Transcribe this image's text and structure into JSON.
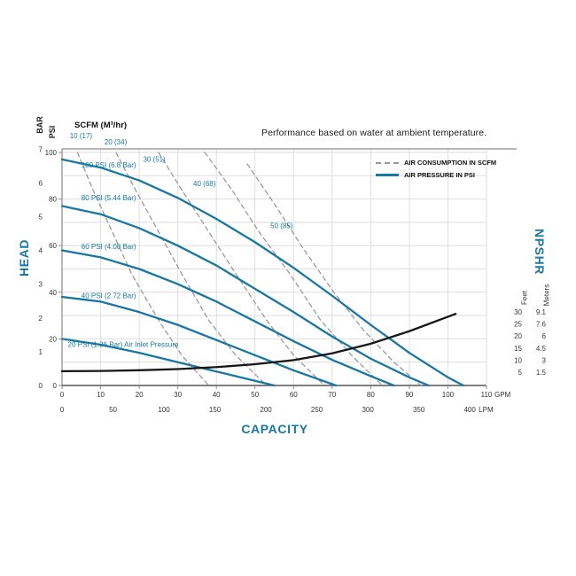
{
  "legend": [
    {
      "label": "AIR CONSUMPTION IN SCFM",
      "style": "dashed",
      "color": "#999999"
    },
    {
      "label": "AIR PRESSURE IN PSI",
      "style": "solid",
      "color": "#1878a2"
    }
  ],
  "chart_data": {
    "type": "line",
    "title": "Performance based on water at ambient temperature.",
    "air_consumption_header": "SCFM (M³/hr)",
    "x_axis": {
      "label": "CAPACITY",
      "gpm": {
        "unit": "GPM",
        "ticks": [
          0,
          10,
          20,
          30,
          40,
          50,
          60,
          70,
          80,
          90,
          100,
          110
        ]
      },
      "lpm": {
        "unit": "LPM",
        "ticks": [
          0,
          50,
          100,
          150,
          200,
          250,
          300,
          350,
          400
        ]
      },
      "range_gpm": [
        0,
        110
      ]
    },
    "y_axis": {
      "label": "HEAD",
      "psi": {
        "unit": "PSI",
        "ticks": [
          0,
          20,
          40,
          60,
          80,
          100
        ]
      },
      "bar": {
        "unit": "BAR",
        "ticks": [
          0,
          1,
          2,
          3,
          4,
          5,
          6,
          7
        ]
      },
      "range_psi": [
        0,
        100
      ]
    },
    "npshr_axis": {
      "label": "NPSHR",
      "feet": {
        "unit": "Feet",
        "ticks": [
          30,
          25,
          20,
          15,
          10,
          5
        ]
      },
      "meters": {
        "unit": "Meters",
        "ticks": [
          "9.1",
          "7.6",
          "6",
          "4.5",
          "3",
          "1.5"
        ]
      }
    },
    "series": {
      "pressure_curves": [
        {
          "name": "100 PSI (6.8 Bar)",
          "label_pos": [
            5,
            93.5
          ],
          "points": [
            [
              0,
              97
            ],
            [
              10,
              93.5
            ],
            [
              20,
              88
            ],
            [
              30,
              80.5
            ],
            [
              40,
              71.5
            ],
            [
              50,
              61.5
            ],
            [
              60,
              50.5
            ],
            [
              70,
              38.5
            ],
            [
              80,
              26
            ],
            [
              90,
              14
            ],
            [
              100,
              3.5
            ],
            [
              104,
              0
            ]
          ]
        },
        {
          "name": "80 PSI (5.44 Bar)",
          "label_pos": [
            5,
            79.5
          ],
          "points": [
            [
              0,
              77
            ],
            [
              10,
              73.5
            ],
            [
              20,
              67.5
            ],
            [
              30,
              60
            ],
            [
              40,
              51.5
            ],
            [
              50,
              41.5
            ],
            [
              60,
              31.5
            ],
            [
              70,
              21
            ],
            [
              80,
              11.5
            ],
            [
              90,
              3.5
            ],
            [
              95,
              0
            ]
          ]
        },
        {
          "name": "60 PSI (4.08 Bar)",
          "label_pos": [
            5,
            58.5
          ],
          "points": [
            [
              0,
              58
            ],
            [
              10,
              55
            ],
            [
              20,
              50
            ],
            [
              30,
              43.5
            ],
            [
              40,
              36
            ],
            [
              50,
              27.5
            ],
            [
              60,
              19
            ],
            [
              70,
              11
            ],
            [
              80,
              4
            ],
            [
              86,
              0
            ]
          ]
        },
        {
          "name": "40 PSI (2.72 Bar)",
          "label_pos": [
            5,
            37.5
          ],
          "points": [
            [
              0,
              38
            ],
            [
              10,
              36
            ],
            [
              20,
              31.5
            ],
            [
              30,
              26
            ],
            [
              40,
              19.5
            ],
            [
              50,
              13
            ],
            [
              60,
              6.5
            ],
            [
              71,
              0
            ]
          ]
        },
        {
          "name": "20 PSI (1.36 Bar) Air Inlet Pressure",
          "label_pos": [
            1.5,
            16.5
          ],
          "points": [
            [
              0,
              20
            ],
            [
              10,
              17.5
            ],
            [
              20,
              14
            ],
            [
              30,
              10
            ],
            [
              40,
              6
            ],
            [
              50,
              2
            ],
            [
              55,
              0
            ]
          ]
        }
      ],
      "air_curves": [
        {
          "name": "10 (17)",
          "label_pos": [
            2,
            106
          ],
          "points": [
            [
              4,
              100
            ],
            [
              8,
              84
            ],
            [
              13,
              66
            ],
            [
              18,
              48
            ],
            [
              25,
              28
            ],
            [
              31,
              13
            ],
            [
              38,
              0
            ]
          ]
        },
        {
          "name": "20 (34)",
          "label_pos": [
            11,
            103.5
          ],
          "points": [
            [
              14,
              100
            ],
            [
              19,
              84
            ],
            [
              25,
              66
            ],
            [
              31,
              48
            ],
            [
              38,
              28
            ],
            [
              45,
              13
            ],
            [
              53,
              0
            ]
          ]
        },
        {
          "name": "30 (51)",
          "label_pos": [
            21,
            96
          ],
          "points": [
            [
              25,
              100
            ],
            [
              31,
              84
            ],
            [
              38,
              66
            ],
            [
              45,
              48
            ],
            [
              53,
              28
            ],
            [
              60,
              13
            ],
            [
              68,
              0
            ]
          ]
        },
        {
          "name": "40 (68)",
          "label_pos": [
            34,
            85.5
          ],
          "points": [
            [
              37,
              100
            ],
            [
              44,
              84
            ],
            [
              51,
              66
            ],
            [
              59,
              48
            ],
            [
              67,
              28
            ],
            [
              75,
              13
            ],
            [
              83,
              0
            ]
          ]
        },
        {
          "name": "50 (85)",
          "label_pos": [
            54,
            67.5
          ],
          "points": [
            [
              48,
              95
            ],
            [
              55,
              78
            ],
            [
              62,
              60
            ],
            [
              70,
              41
            ],
            [
              78,
              24
            ],
            [
              86,
              10
            ],
            [
              93,
              0
            ]
          ]
        }
      ],
      "npshr_curve": {
        "name": "NPSHR",
        "points_gpm_feet": [
          [
            0,
            5.4
          ],
          [
            10,
            5.5
          ],
          [
            20,
            5.8
          ],
          [
            30,
            6.3
          ],
          [
            40,
            7.1
          ],
          [
            50,
            8.3
          ],
          [
            60,
            10
          ],
          [
            70,
            12.8
          ],
          [
            80,
            16.8
          ],
          [
            90,
            22
          ],
          [
            100,
            28
          ],
          [
            102,
            29.2
          ]
        ]
      }
    },
    "colors": {
      "pressure": "#1878a2",
      "air": "#9a9a9a",
      "npshr": "#161616",
      "grid": "#dedede",
      "axis": "#8a8a8a",
      "accent_text": "#1878a2"
    }
  }
}
